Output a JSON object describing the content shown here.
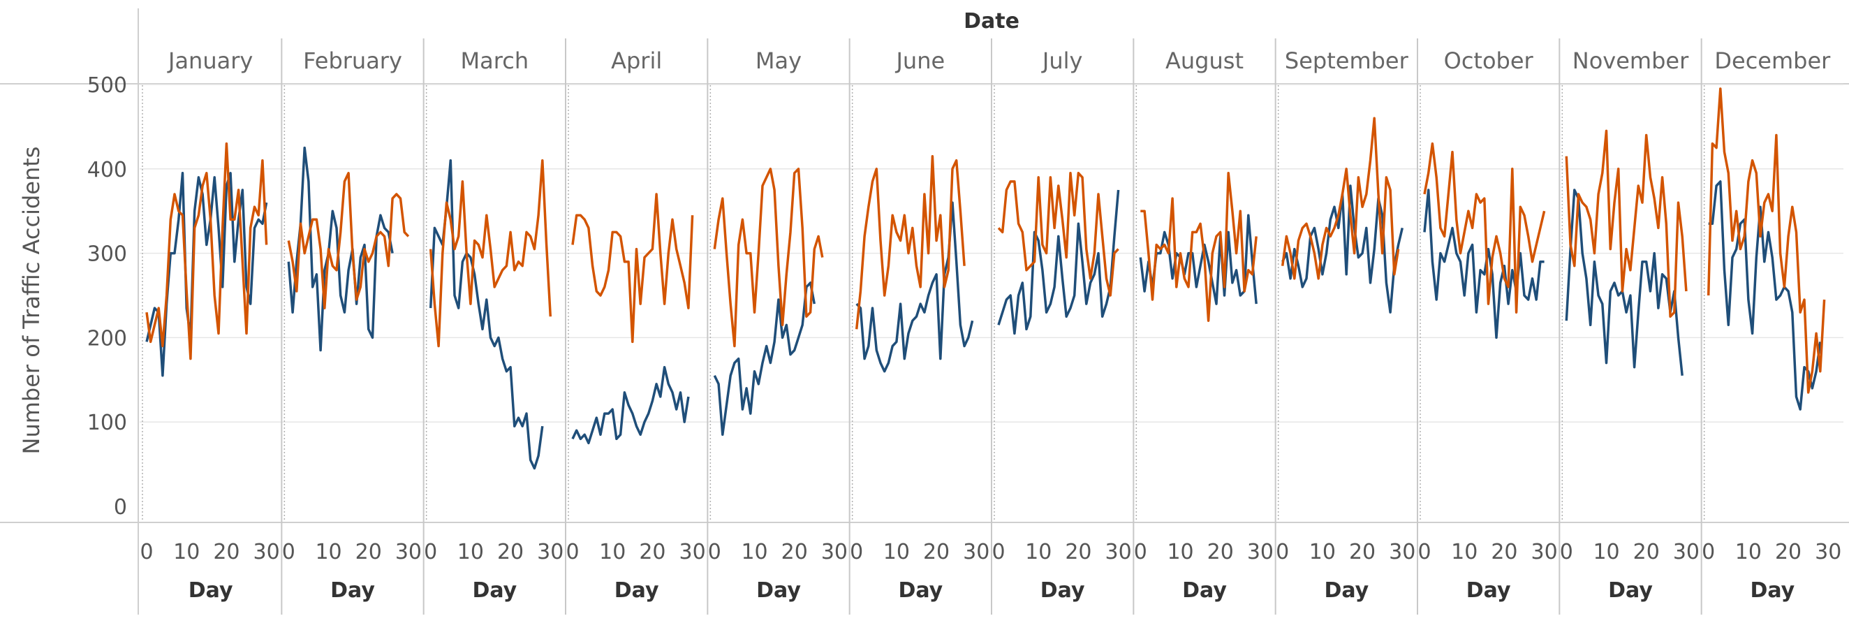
{
  "chart_data": {
    "type": "line",
    "column_header": "Date",
    "ylabel": "Number of Traffic Accidents",
    "xlabel": "Day",
    "ylim": [
      0,
      520
    ],
    "y_ticks": [
      0,
      100,
      200,
      300,
      400,
      500
    ],
    "x_ticks": [
      0,
      10,
      20,
      30
    ],
    "x_tick_labels": [
      "0",
      "10",
      "20",
      "30"
    ],
    "months": [
      "January",
      "February",
      "March",
      "April",
      "May",
      "June",
      "July",
      "August",
      "September",
      "October",
      "November",
      "December"
    ],
    "colors": {
      "blue": "#1f4e79",
      "orange": "#d35400",
      "grid": "#e6e6e6",
      "divider": "#c8c8c8"
    },
    "series": [
      {
        "name": "blue",
        "color": "#1f4e79",
        "months": [
          [
            195,
            215,
            235,
            230,
            155,
            240,
            300,
            300,
            340,
            395,
            235,
            200,
            350,
            390,
            370,
            310,
            340,
            390,
            330,
            260,
            380,
            395,
            290,
            340,
            375,
            260,
            240,
            330,
            340,
            335,
            360
          ],
          [
            290,
            230,
            290,
            335,
            425,
            385,
            260,
            275,
            185,
            280,
            300,
            350,
            330,
            250,
            230,
            280,
            305,
            240,
            295,
            310,
            210,
            200,
            320,
            345,
            330,
            325,
            300
          ],
          [
            235,
            330,
            320,
            310,
            355,
            410,
            250,
            235,
            290,
            300,
            295,
            275,
            240,
            210,
            245,
            200,
            190,
            200,
            175,
            160,
            165,
            95,
            105,
            95,
            110,
            55,
            45,
            60,
            95
          ],
          [
            80,
            90,
            80,
            85,
            75,
            90,
            105,
            85,
            110,
            110,
            115,
            80,
            85,
            135,
            120,
            110,
            95,
            85,
            100,
            110,
            125,
            145,
            130,
            165,
            145,
            135,
            115,
            135,
            100,
            130
          ],
          [
            155,
            145,
            85,
            120,
            155,
            170,
            175,
            115,
            140,
            110,
            160,
            145,
            170,
            190,
            170,
            195,
            245,
            200,
            215,
            180,
            185,
            200,
            215,
            260,
            265,
            240
          ],
          [
            240,
            235,
            175,
            190,
            235,
            185,
            170,
            160,
            170,
            190,
            195,
            240,
            175,
            205,
            220,
            225,
            240,
            230,
            250,
            265,
            275,
            175,
            275,
            295,
            360,
            290,
            215,
            190,
            200,
            220
          ],
          [
            215,
            230,
            245,
            250,
            205,
            250,
            265,
            210,
            225,
            325,
            315,
            280,
            230,
            240,
            260,
            320,
            270,
            225,
            235,
            250,
            335,
            290,
            240,
            265,
            275,
            300,
            225,
            240,
            260,
            320,
            375
          ],
          [
            295,
            255,
            290,
            260,
            300,
            300,
            325,
            310,
            270,
            300,
            295,
            275,
            300,
            300,
            260,
            285,
            310,
            290,
            265,
            240,
            320,
            250,
            325,
            265,
            280,
            250,
            255,
            345,
            290,
            240
          ],
          [
            290,
            300,
            270,
            305,
            285,
            260,
            270,
            320,
            330,
            305,
            275,
            300,
            340,
            355,
            330,
            370,
            275,
            380,
            330,
            295,
            300,
            330,
            265,
            305,
            365,
            345,
            265,
            230,
            285,
            310,
            330
          ],
          [
            325,
            375,
            290,
            245,
            300,
            290,
            310,
            330,
            300,
            290,
            250,
            300,
            310,
            230,
            280,
            275,
            305,
            275,
            200,
            265,
            285,
            240,
            280,
            255,
            300,
            250,
            245,
            270,
            245,
            290,
            290
          ],
          [
            220,
            305,
            375,
            365,
            300,
            270,
            215,
            290,
            250,
            240,
            170,
            255,
            265,
            250,
            255,
            230,
            250,
            165,
            230,
            290,
            290,
            255,
            300,
            235,
            275,
            270,
            230,
            255,
            200,
            155
          ],
          [
            335,
            335,
            380,
            385,
            280,
            215,
            295,
            305,
            335,
            340,
            245,
            205,
            295,
            355,
            290,
            325,
            295,
            245,
            250,
            260,
            255,
            230,
            130,
            115,
            165,
            160,
            140,
            160,
            195
          ]
        ]
      },
      {
        "name": "orange",
        "color": "#d35400",
        "months": [
          [
            230,
            195,
            215,
            235,
            190,
            250,
            340,
            370,
            350,
            345,
            255,
            175,
            330,
            345,
            380,
            395,
            340,
            250,
            205,
            330,
            430,
            340,
            340,
            375,
            290,
            205,
            330,
            355,
            345,
            410,
            310
          ],
          [
            315,
            290,
            255,
            335,
            300,
            320,
            340,
            340,
            305,
            235,
            305,
            285,
            280,
            325,
            385,
            395,
            300,
            245,
            260,
            305,
            290,
            300,
            320,
            325,
            320,
            285,
            365,
            370,
            365,
            325,
            320
          ],
          [
            305,
            240,
            190,
            300,
            360,
            340,
            305,
            320,
            385,
            300,
            240,
            315,
            310,
            295,
            345,
            305,
            260,
            270,
            280,
            285,
            325,
            280,
            290,
            285,
            325,
            320,
            305,
            345,
            410,
            310,
            225
          ],
          [
            310,
            345,
            345,
            340,
            330,
            285,
            255,
            250,
            260,
            280,
            325,
            325,
            320,
            290,
            290,
            195,
            305,
            240,
            295,
            300,
            305,
            370,
            300,
            240,
            300,
            340,
            305,
            285,
            265,
            235,
            345
          ],
          [
            305,
            340,
            365,
            300,
            240,
            190,
            310,
            340,
            300,
            300,
            230,
            300,
            380,
            390,
            400,
            375,
            285,
            215,
            275,
            325,
            395,
            400,
            330,
            225,
            230,
            305,
            320,
            295
          ],
          [
            210,
            255,
            320,
            355,
            385,
            400,
            315,
            250,
            285,
            345,
            325,
            315,
            345,
            300,
            330,
            285,
            260,
            370,
            300,
            415,
            315,
            345,
            260,
            280,
            400,
            410,
            350,
            285
          ],
          [
            330,
            325,
            375,
            385,
            385,
            335,
            325,
            280,
            285,
            290,
            390,
            310,
            300,
            390,
            330,
            380,
            340,
            295,
            395,
            345,
            395,
            390,
            305,
            270,
            300,
            370,
            320,
            270,
            250,
            300,
            305
          ],
          [
            350,
            350,
            300,
            245,
            310,
            305,
            310,
            300,
            365,
            260,
            300,
            270,
            260,
            325,
            325,
            335,
            295,
            220,
            300,
            320,
            325,
            260,
            395,
            350,
            300,
            350,
            255,
            280,
            275,
            320
          ],
          [
            285,
            320,
            300,
            270,
            315,
            330,
            335,
            320,
            300,
            270,
            310,
            330,
            320,
            330,
            345,
            370,
            400,
            345,
            300,
            390,
            355,
            370,
            410,
            460,
            370,
            300,
            390,
            375,
            275,
            305
          ],
          [
            370,
            395,
            430,
            390,
            330,
            320,
            370,
            420,
            340,
            300,
            325,
            350,
            330,
            370,
            360,
            365,
            240,
            295,
            320,
            300,
            270,
            260,
            400,
            230,
            355,
            345,
            320,
            290,
            310,
            330,
            350
          ],
          [
            415,
            310,
            285,
            370,
            360,
            355,
            340,
            300,
            370,
            395,
            445,
            305,
            360,
            400,
            255,
            305,
            280,
            330,
            380,
            360,
            440,
            390,
            365,
            330,
            390,
            335,
            225,
            230,
            360,
            320,
            255
          ],
          [
            250,
            430,
            425,
            495,
            420,
            395,
            315,
            350,
            305,
            320,
            385,
            410,
            395,
            320,
            360,
            370,
            350,
            440,
            300,
            260,
            320,
            355,
            325,
            230,
            245,
            135,
            160,
            205,
            160,
            245
          ]
        ]
      }
    ]
  }
}
